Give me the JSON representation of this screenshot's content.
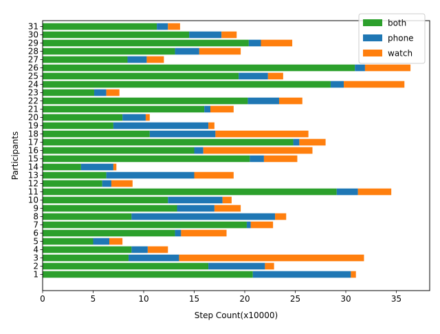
{
  "chart_data": {
    "type": "bar",
    "orientation": "horizontal",
    "stacked": true,
    "xlabel": "Step Count(x10000)",
    "ylabel": "Participants",
    "xlim": [
      0,
      38.3
    ],
    "xticks": [
      0,
      5,
      10,
      15,
      20,
      25,
      30,
      35
    ],
    "grid": false,
    "legend_position": "top-right",
    "categories": [
      "1",
      "2",
      "3",
      "4",
      "5",
      "6",
      "7",
      "8",
      "9",
      "10",
      "11",
      "12",
      "13",
      "14",
      "15",
      "16",
      "17",
      "18",
      "19",
      "20",
      "21",
      "22",
      "23",
      "24",
      "25",
      "26",
      "27",
      "28",
      "29",
      "30",
      "31"
    ],
    "series": [
      {
        "name": "both",
        "color": "#2ca02c",
        "values": [
          20.8,
          16.4,
          8.5,
          8.8,
          5.0,
          13.1,
          20.2,
          8.8,
          13.3,
          12.4,
          29.1,
          5.9,
          6.3,
          3.8,
          20.5,
          15.0,
          24.8,
          10.6,
          7.0,
          7.9,
          16.0,
          20.3,
          5.1,
          28.5,
          19.4,
          30.9,
          8.4,
          13.1,
          20.4,
          14.5,
          11.3
        ]
      },
      {
        "name": "phone",
        "color": "#1f77b4",
        "values": [
          9.7,
          5.6,
          5.0,
          1.6,
          1.6,
          0.6,
          0.4,
          14.2,
          3.7,
          5.4,
          2.1,
          0.9,
          8.7,
          3.2,
          1.4,
          0.9,
          0.6,
          6.5,
          9.4,
          2.3,
          0.6,
          3.1,
          1.2,
          1.3,
          2.9,
          1.0,
          1.9,
          2.4,
          1.2,
          3.2,
          1.1
        ]
      },
      {
        "name": "watch",
        "color": "#ff7f0e",
        "values": [
          0.5,
          0.9,
          18.3,
          2.0,
          1.3,
          4.5,
          2.2,
          1.1,
          2.6,
          0.9,
          3.3,
          2.1,
          3.9,
          0.3,
          3.3,
          10.8,
          2.6,
          9.2,
          0.6,
          0.4,
          2.3,
          2.3,
          1.3,
          6.0,
          1.5,
          4.5,
          1.7,
          4.1,
          3.1,
          1.5,
          1.2
        ]
      }
    ]
  }
}
